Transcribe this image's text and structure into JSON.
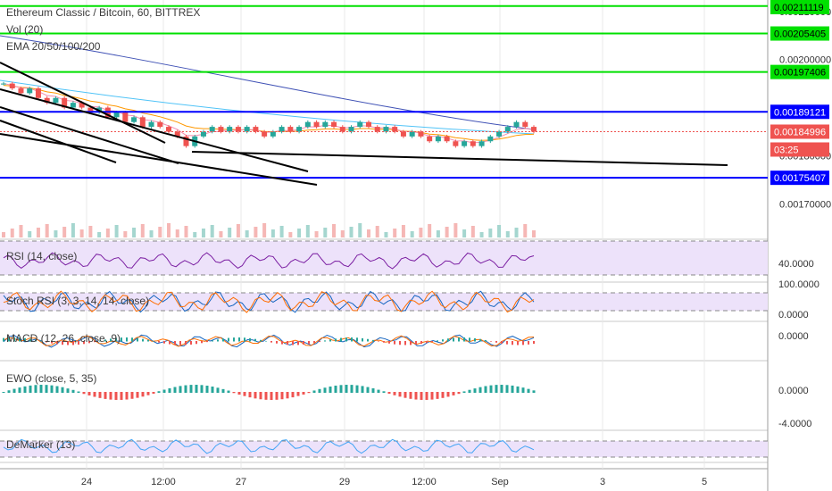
{
  "header": {
    "title": "Ethereum Classic / Bitcoin, 60, BITTREX",
    "vol_label": "Vol (20)",
    "ema_label": "EMA 20/50/100/200"
  },
  "colors": {
    "up": "#26a69a",
    "down": "#ef5350",
    "green_line": "#00e000",
    "blue_line": "#0000ff",
    "black_line": "#000000",
    "ema_blue": "#3f51b5",
    "ema_cyan": "#4fc3f7",
    "ema_orange": "#ff9800",
    "rsi_line": "#7b1fa2",
    "macd_line": "#1565c0",
    "signal_line": "#ff6d00",
    "demarker": "#42a5f5",
    "band_fill": "#ede2fa"
  },
  "price_axis": {
    "ticks": [
      "0.00210000",
      "0.00200000",
      "0.00180000",
      "0.00170000"
    ]
  },
  "price_labels": [
    {
      "text": "0.00211119",
      "color": "#00e000",
      "text_color": "#000000"
    },
    {
      "text": "0.00205405",
      "color": "#00e000",
      "text_color": "#000000"
    },
    {
      "text": "0.00197406",
      "color": "#00e000",
      "text_color": "#000000"
    },
    {
      "text": "0.00189121",
      "color": "#0000ff",
      "text_color": "#ffffff"
    },
    {
      "text": "0.00184996",
      "color": "#ef5350",
      "text_color": "#ffffff"
    },
    {
      "text": "03:25",
      "color": "#ef5350",
      "text_color": "#ffffff"
    },
    {
      "text": "0.00175407",
      "color": "#0000ff",
      "text_color": "#ffffff"
    }
  ],
  "panes": {
    "rsi": {
      "label": "RSI (14, close)",
      "axis": [
        "40.0000"
      ]
    },
    "stoch": {
      "label": "Stoch RSI (3, 3, 14, 14, close)",
      "axis": [
        "100.0000",
        "0.0000"
      ]
    },
    "macd": {
      "label": "MACD (12, 26, close, 9)",
      "axis": [
        "0.0000"
      ]
    },
    "ewo": {
      "label": "EWO (close, 5, 35)",
      "axis": [
        "0.0000",
        "-4.0000"
      ]
    },
    "demarker": {
      "label": "DeMarker (13)",
      "axis": []
    }
  },
  "time_axis": {
    "labels": [
      "24",
      "12:00",
      "27",
      "29",
      "12:00",
      "Sep",
      "3",
      "5"
    ]
  },
  "chart_data": {
    "type": "candlestick",
    "symbol": "Ethereum Classic / Bitcoin",
    "interval": "60",
    "exchange": "BITTREX",
    "y_range": [
      0.00163,
      0.00212
    ],
    "horizontal_levels": [
      {
        "price": 0.00211119,
        "color": "green"
      },
      {
        "price": 0.00205405,
        "color": "green"
      },
      {
        "price": 0.00197406,
        "color": "green"
      },
      {
        "price": 0.00189121,
        "color": "blue"
      },
      {
        "price": 0.00175407,
        "color": "blue"
      }
    ],
    "last_price": 0.00184996,
    "close_series": [
      0.00195,
      0.00194,
      0.00193,
      0.00194,
      0.00192,
      0.00191,
      0.00192,
      0.0019,
      0.00191,
      0.0019,
      0.00189,
      0.0019,
      0.00188,
      0.00189,
      0.00187,
      0.00188,
      0.00186,
      0.00187,
      0.00186,
      0.00185,
      0.00184,
      0.00182,
      0.00184,
      0.00185,
      0.00186,
      0.00185,
      0.00186,
      0.00185,
      0.00186,
      0.00185,
      0.00184,
      0.00185,
      0.00186,
      0.00185,
      0.00186,
      0.00187,
      0.00186,
      0.00187,
      0.00186,
      0.00185,
      0.00186,
      0.00187,
      0.00186,
      0.00185,
      0.00186,
      0.00185,
      0.00184,
      0.00185,
      0.00184,
      0.00183,
      0.00184,
      0.00183,
      0.00182,
      0.00183,
      0.00182,
      0.00183,
      0.00184,
      0.00185,
      0.00186,
      0.00187,
      0.00186,
      0.00185
    ],
    "x_labels": [
      "24",
      "12:00",
      "27",
      "29",
      "12:00",
      "Sep",
      "3",
      "5"
    ]
  }
}
